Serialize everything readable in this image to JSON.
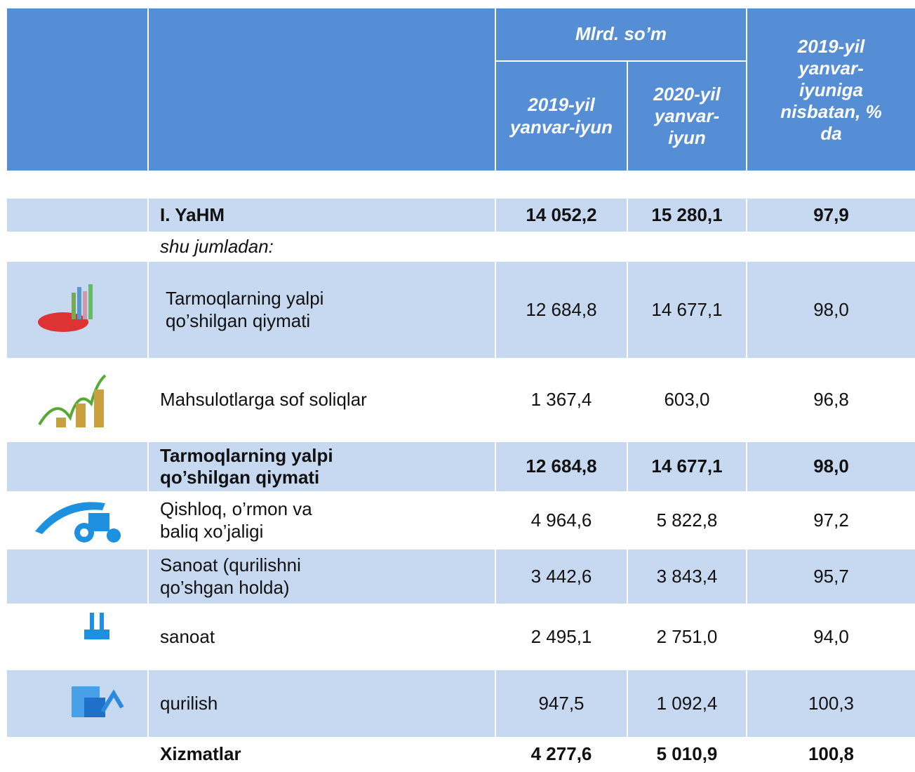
{
  "header": {
    "group": "Mlrd. so’m",
    "col_2019": "2019-yil yanvar-iyun",
    "col_2020": "2020-yil yanvar-iyun",
    "col_pct": "2019-yil yanvar-iyuniga nisbatan, % da"
  },
  "table": {
    "rows": [
      {
        "label": "I. YaHM",
        "values": [
          "14 052,2",
          "15 280,1",
          "97,9"
        ]
      },
      {
        "label": "shu jumladan:"
      },
      {
        "label": "Tarmoqlarning  yalpi qo’shilgan qiymati",
        "values": [
          "12 684,8",
          "14 677,1",
          "98,0"
        ]
      },
      {
        "label": "Mahsulotlarga  sof soliqlar",
        "values": [
          "1 367,4",
          "603,0",
          "96,8"
        ]
      },
      {
        "label": "Tarmoqlarning yalpi qo’shilgan qiymati",
        "values": [
          "12 684,8",
          "14 677,1",
          "98,0"
        ]
      },
      {
        "label": "Qishloq, o’rmon va baliq xo’jaligi",
        "values": [
          "4 964,6",
          "5 822,8",
          "97,2"
        ]
      },
      {
        "label": "Sanoat (qurilishni qo’shgan holda)",
        "values": [
          "3 442,6",
          "3 843,4",
          "95,7"
        ]
      },
      {
        "label": "sanoat",
        "values": [
          "2 495,1",
          "2 751,0",
          "94,0"
        ]
      },
      {
        "label": "qurilish",
        "values": [
          "947,5",
          "1 092,4",
          "100,3"
        ]
      },
      {
        "label": "Xizmatlar",
        "values": [
          "4 277,6",
          "5 010,9",
          "100,8"
        ]
      }
    ]
  }
}
